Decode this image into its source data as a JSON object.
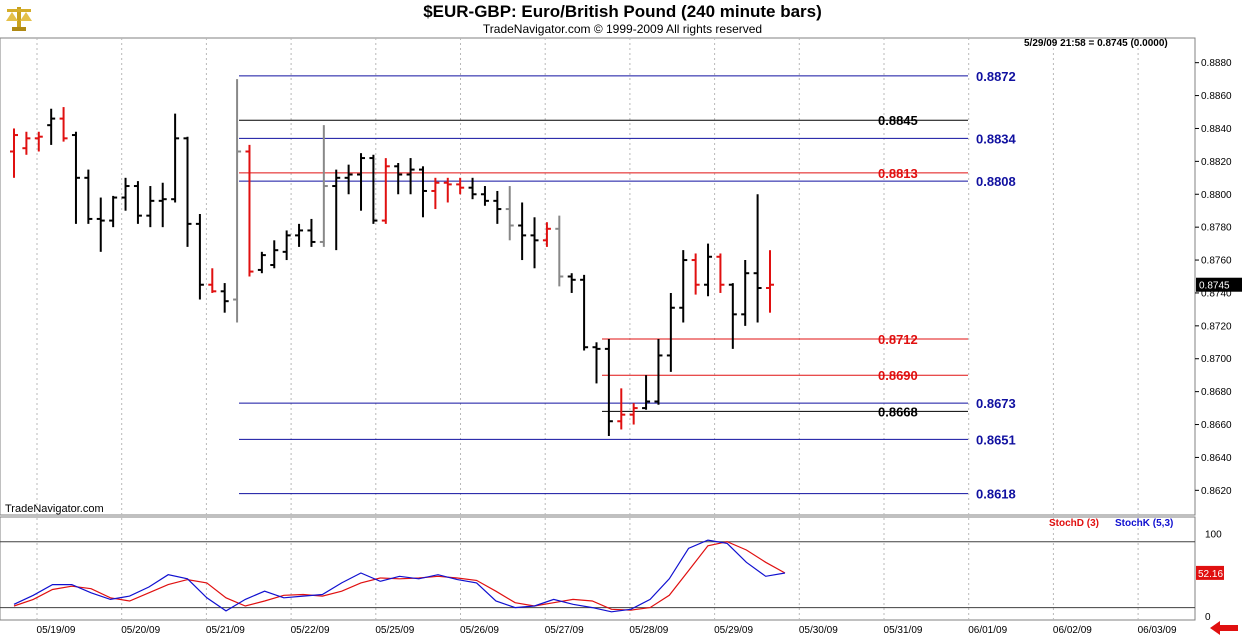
{
  "header": {
    "title": "$EUR-GBP:  Euro/British Pound  (240 minute bars)",
    "subtitle": "TradeNavigator.com © 1999-2009 All rights reserved",
    "logo_icon": "gold-scales-logo-icon"
  },
  "readout": "5/29/09 21:58 = 0.8745 (0.0000)",
  "watermark": "TradeNavigator.com",
  "colors": {
    "up_bar": "#000000",
    "down_bar": "#e01010",
    "neutral_bar": "#888888",
    "blue_level": "#1010a0",
    "red_level": "#e01010",
    "stoch_d": "#e01010",
    "stoch_k": "#1010d0",
    "price_tag_bg": "#000000"
  },
  "chart_data": [
    {
      "type": "bar",
      "subtype": "ohlc",
      "title": "$EUR-GBP:  Euro/British Pound  (240 minute bars)",
      "ylim": [
        0.8605,
        0.8895
      ],
      "y_ticks": [
        "0.8620",
        "0.8640",
        "0.8660",
        "0.8680",
        "0.8700",
        "0.8720",
        "0.8740",
        "0.8760",
        "0.8780",
        "0.8800",
        "0.8820",
        "0.8840",
        "0.8860",
        "0.8880"
      ],
      "x_labels": [
        "05/19/09",
        "05/20/09",
        "05/21/09",
        "05/22/09",
        "05/25/09",
        "05/26/09",
        "05/27/09",
        "05/28/09",
        "05/29/09",
        "05/30/09",
        "05/31/09",
        "06/01/09",
        "06/02/09",
        "06/03/09"
      ],
      "last_price": "0.8745",
      "bars": [
        {
          "date": "05/19/09",
          "o": 0.8826,
          "h": 0.884,
          "l": 0.881,
          "c": 0.8836,
          "t": "d"
        },
        {
          "date": "05/19/09",
          "o": 0.8828,
          "h": 0.8838,
          "l": 0.8824,
          "c": 0.8834,
          "t": "d"
        },
        {
          "date": "05/19/09",
          "o": 0.8834,
          "h": 0.8838,
          "l": 0.8826,
          "c": 0.8835,
          "t": "d"
        },
        {
          "date": "05/19/09",
          "o": 0.8842,
          "h": 0.8852,
          "l": 0.883,
          "c": 0.8846,
          "t": "u"
        },
        {
          "date": "05/19/09",
          "o": 0.8846,
          "h": 0.8853,
          "l": 0.8832,
          "c": 0.8834,
          "t": "d"
        },
        {
          "date": "05/19/09",
          "o": 0.8836,
          "h": 0.8838,
          "l": 0.8782,
          "c": 0.881,
          "t": "u"
        },
        {
          "date": "05/19/09",
          "o": 0.881,
          "h": 0.8815,
          "l": 0.8782,
          "c": 0.8785,
          "t": "u"
        },
        {
          "date": "05/19/09",
          "o": 0.8785,
          "h": 0.8798,
          "l": 0.8765,
          "c": 0.8784,
          "t": "u"
        },
        {
          "date": "05/20/09",
          "o": 0.8784,
          "h": 0.8799,
          "l": 0.878,
          "c": 0.8798,
          "t": "u"
        },
        {
          "date": "05/20/09",
          "o": 0.8798,
          "h": 0.881,
          "l": 0.879,
          "c": 0.8805,
          "t": "u"
        },
        {
          "date": "05/20/09",
          "o": 0.8805,
          "h": 0.8808,
          "l": 0.8782,
          "c": 0.8787,
          "t": "u"
        },
        {
          "date": "05/20/09",
          "o": 0.8787,
          "h": 0.8805,
          "l": 0.878,
          "c": 0.8796,
          "t": "u"
        },
        {
          "date": "05/20/09",
          "o": 0.8796,
          "h": 0.8807,
          "l": 0.878,
          "c": 0.8797,
          "t": "u"
        },
        {
          "date": "05/20/09",
          "o": 0.8797,
          "h": 0.8849,
          "l": 0.8795,
          "c": 0.8834,
          "t": "u"
        },
        {
          "date": "05/20/09",
          "o": 0.8834,
          "h": 0.8835,
          "l": 0.8768,
          "c": 0.8782,
          "t": "u"
        },
        {
          "date": "05/20/09",
          "o": 0.8782,
          "h": 0.8788,
          "l": 0.8736,
          "c": 0.8745,
          "t": "u"
        },
        {
          "date": "05/21/09",
          "o": 0.8745,
          "h": 0.8755,
          "l": 0.874,
          "c": 0.8741,
          "t": "d"
        },
        {
          "date": "05/21/09",
          "o": 0.8741,
          "h": 0.8746,
          "l": 0.8728,
          "c": 0.8735,
          "t": "u"
        },
        {
          "date": "05/21/09",
          "o": 0.8736,
          "h": 0.887,
          "l": 0.8722,
          "c": 0.8826,
          "t": "n"
        },
        {
          "date": "05/21/09",
          "o": 0.8826,
          "h": 0.883,
          "l": 0.875,
          "c": 0.8753,
          "t": "d"
        },
        {
          "date": "05/21/09",
          "o": 0.8754,
          "h": 0.8765,
          "l": 0.8752,
          "c": 0.8763,
          "t": "u"
        },
        {
          "date": "05/21/09",
          "o": 0.8757,
          "h": 0.8772,
          "l": 0.8755,
          "c": 0.8766,
          "t": "u"
        },
        {
          "date": "05/22/09",
          "o": 0.8765,
          "h": 0.8778,
          "l": 0.876,
          "c": 0.8775,
          "t": "u"
        },
        {
          "date": "05/22/09",
          "o": 0.8775,
          "h": 0.8782,
          "l": 0.8768,
          "c": 0.8778,
          "t": "u"
        },
        {
          "date": "05/22/09",
          "o": 0.8778,
          "h": 0.8785,
          "l": 0.8768,
          "c": 0.8771,
          "t": "u"
        },
        {
          "date": "05/22/09",
          "o": 0.8771,
          "h": 0.8842,
          "l": 0.8768,
          "c": 0.8805,
          "t": "n"
        },
        {
          "date": "05/22/09",
          "o": 0.8805,
          "h": 0.8815,
          "l": 0.8766,
          "c": 0.881,
          "t": "u"
        },
        {
          "date": "05/22/09",
          "o": 0.881,
          "h": 0.8818,
          "l": 0.88,
          "c": 0.8812,
          "t": "u"
        },
        {
          "date": "05/22/09",
          "o": 0.8812,
          "h": 0.8825,
          "l": 0.879,
          "c": 0.8822,
          "t": "u"
        },
        {
          "date": "05/22/09",
          "o": 0.8822,
          "h": 0.8824,
          "l": 0.8782,
          "c": 0.8784,
          "t": "u"
        },
        {
          "date": "05/25/09",
          "o": 0.8784,
          "h": 0.8822,
          "l": 0.8782,
          "c": 0.8817,
          "t": "d"
        },
        {
          "date": "05/25/09",
          "o": 0.8817,
          "h": 0.8819,
          "l": 0.88,
          "c": 0.8812,
          "t": "u"
        },
        {
          "date": "05/25/09",
          "o": 0.8812,
          "h": 0.8822,
          "l": 0.88,
          "c": 0.8815,
          "t": "u"
        },
        {
          "date": "05/25/09",
          "o": 0.8815,
          "h": 0.8817,
          "l": 0.8786,
          "c": 0.8802,
          "t": "u"
        },
        {
          "date": "05/25/09",
          "o": 0.8802,
          "h": 0.881,
          "l": 0.8791,
          "c": 0.8807,
          "t": "d"
        },
        {
          "date": "05/25/09",
          "o": 0.8807,
          "h": 0.881,
          "l": 0.8795,
          "c": 0.8806,
          "t": "d"
        },
        {
          "date": "05/25/09",
          "o": 0.8806,
          "h": 0.881,
          "l": 0.88,
          "c": 0.8804,
          "t": "d"
        },
        {
          "date": "05/26/09",
          "o": 0.8804,
          "h": 0.881,
          "l": 0.8797,
          "c": 0.88,
          "t": "u"
        },
        {
          "date": "05/26/09",
          "o": 0.88,
          "h": 0.8805,
          "l": 0.8793,
          "c": 0.8796,
          "t": "u"
        },
        {
          "date": "05/26/09",
          "o": 0.8796,
          "h": 0.8802,
          "l": 0.8782,
          "c": 0.8791,
          "t": "u"
        },
        {
          "date": "05/26/09",
          "o": 0.8791,
          "h": 0.8805,
          "l": 0.8772,
          "c": 0.8781,
          "t": "n"
        },
        {
          "date": "05/26/09",
          "o": 0.8781,
          "h": 0.8795,
          "l": 0.876,
          "c": 0.8775,
          "t": "u"
        },
        {
          "date": "05/26/09",
          "o": 0.8775,
          "h": 0.8786,
          "l": 0.8755,
          "c": 0.8772,
          "t": "u"
        },
        {
          "date": "05/26/09",
          "o": 0.8772,
          "h": 0.8783,
          "l": 0.8768,
          "c": 0.8779,
          "t": "d"
        },
        {
          "date": "05/27/09",
          "o": 0.8779,
          "h": 0.8787,
          "l": 0.8744,
          "c": 0.875,
          "t": "n"
        },
        {
          "date": "05/27/09",
          "o": 0.875,
          "h": 0.8752,
          "l": 0.874,
          "c": 0.8748,
          "t": "u"
        },
        {
          "date": "05/27/09",
          "o": 0.8748,
          "h": 0.8751,
          "l": 0.8705,
          "c": 0.8707,
          "t": "u"
        },
        {
          "date": "05/27/09",
          "o": 0.8707,
          "h": 0.871,
          "l": 0.8685,
          "c": 0.8706,
          "t": "u"
        },
        {
          "date": "05/27/09",
          "o": 0.8706,
          "h": 0.8712,
          "l": 0.8653,
          "c": 0.8662,
          "t": "u"
        },
        {
          "date": "05/28/09",
          "o": 0.8662,
          "h": 0.8682,
          "l": 0.8657,
          "c": 0.8666,
          "t": "d"
        },
        {
          "date": "05/28/09",
          "o": 0.8666,
          "h": 0.8673,
          "l": 0.866,
          "c": 0.867,
          "t": "d"
        },
        {
          "date": "05/28/09",
          "o": 0.867,
          "h": 0.869,
          "l": 0.8669,
          "c": 0.8674,
          "t": "u"
        },
        {
          "date": "05/28/09",
          "o": 0.8674,
          "h": 0.8712,
          "l": 0.8672,
          "c": 0.8702,
          "t": "u"
        },
        {
          "date": "05/28/09",
          "o": 0.8702,
          "h": 0.874,
          "l": 0.8692,
          "c": 0.8731,
          "t": "u"
        },
        {
          "date": "05/28/09",
          "o": 0.8731,
          "h": 0.8766,
          "l": 0.8722,
          "c": 0.876,
          "t": "u"
        },
        {
          "date": "05/28/09",
          "o": 0.876,
          "h": 0.8764,
          "l": 0.8739,
          "c": 0.8745,
          "t": "d"
        },
        {
          "date": "05/29/09",
          "o": 0.8745,
          "h": 0.877,
          "l": 0.8738,
          "c": 0.8762,
          "t": "u"
        },
        {
          "date": "05/29/09",
          "o": 0.8762,
          "h": 0.8764,
          "l": 0.874,
          "c": 0.8745,
          "t": "d"
        },
        {
          "date": "05/29/09",
          "o": 0.8745,
          "h": 0.8746,
          "l": 0.8706,
          "c": 0.8727,
          "t": "u"
        },
        {
          "date": "05/29/09",
          "o": 0.8727,
          "h": 0.876,
          "l": 0.872,
          "c": 0.8752,
          "t": "u"
        },
        {
          "date": "05/29/09",
          "o": 0.8752,
          "h": 0.88,
          "l": 0.8722,
          "c": 0.8743,
          "t": "u"
        },
        {
          "date": "05/29/09",
          "o": 0.8743,
          "h": 0.8766,
          "l": 0.8728,
          "c": 0.8745,
          "t": "d"
        }
      ],
      "levels": [
        {
          "value": 0.8872,
          "label": "0.8872",
          "color": "blue"
        },
        {
          "value": 0.8845,
          "label": "0.8845",
          "color": "black"
        },
        {
          "value": 0.8834,
          "label": "0.8834",
          "color": "blue"
        },
        {
          "value": 0.8813,
          "label": "0.8813",
          "color": "red"
        },
        {
          "value": 0.8808,
          "label": "0.8808",
          "color": "blue"
        },
        {
          "value": 0.8712,
          "label": "0.8712",
          "color": "red"
        },
        {
          "value": 0.869,
          "label": "0.8690",
          "color": "red"
        },
        {
          "value": 0.8673,
          "label": "0.8673",
          "color": "blue"
        },
        {
          "value": 0.8668,
          "label": "0.8668",
          "color": "black"
        },
        {
          "value": 0.8651,
          "label": "0.8651",
          "color": "blue"
        },
        {
          "value": 0.8618,
          "label": "0.8618",
          "color": "blue"
        }
      ]
    },
    {
      "type": "line",
      "legend": [
        "StochD (3)",
        "StochK (5,3)"
      ],
      "ylim": [
        -5,
        120
      ],
      "y_ticks": [
        "0",
        "50",
        "100"
      ],
      "reference_lines": [
        90,
        10
      ],
      "last_value": "52.16",
      "series": [
        {
          "name": "StochD (3)",
          "color": "red",
          "values": [
            12,
            20,
            32,
            36,
            33,
            22,
            18,
            28,
            38,
            44,
            40,
            22,
            12,
            18,
            25,
            26,
            24,
            30,
            40,
            46,
            45,
            46,
            48,
            46,
            43,
            30,
            16,
            12,
            16,
            20,
            18,
            8,
            7,
            10,
            25,
            55,
            85,
            90,
            80,
            65,
            52
          ]
        },
        {
          "name": "StochK (5,3)",
          "color": "blue",
          "values": [
            14,
            25,
            38,
            38,
            28,
            20,
            24,
            35,
            50,
            45,
            22,
            6,
            20,
            30,
            22,
            24,
            26,
            40,
            52,
            42,
            48,
            45,
            50,
            44,
            40,
            18,
            10,
            12,
            20,
            14,
            10,
            5,
            8,
            20,
            45,
            82,
            92,
            88,
            65,
            48,
            52
          ]
        }
      ]
    }
  ]
}
